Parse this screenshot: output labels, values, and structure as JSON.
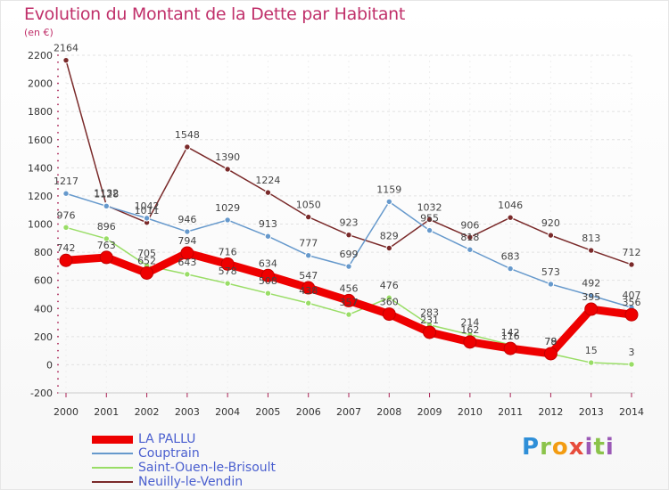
{
  "title": "Evolution du Montant de la Dette par Habitant",
  "unit": "(en €)",
  "logo_text": "Proxiti",
  "chart_data": {
    "type": "line",
    "title": "Evolution du Montant de la Dette par Habitant",
    "ylabel": "(en €)",
    "x": [
      "2000",
      "2001",
      "2002",
      "2003",
      "2004",
      "2005",
      "2006",
      "2007",
      "2008",
      "2009",
      "2010",
      "2011",
      "2012",
      "2013",
      "2014"
    ],
    "yticks": [
      -200,
      0,
      200,
      400,
      600,
      800,
      1000,
      1200,
      1400,
      1600,
      1800,
      2000,
      2200
    ],
    "ylim": [
      -200,
      2200
    ],
    "grid": true,
    "legend_position": "bottom-left",
    "series": [
      {
        "name": "LA PALLU",
        "color": "#ee0000",
        "values": [
          742,
          763,
          652,
          794,
          716,
          634,
          547,
          456,
          360,
          231,
          162,
          116,
          79,
          395,
          356
        ],
        "labels": [
          "742",
          "763",
          "652",
          "794",
          "716",
          "634",
          "547",
          "456",
          "360",
          "231",
          "162",
          "116",
          "79",
          "395",
          "356"
        ]
      },
      {
        "name": "Couptrain",
        "color": "#6699cc",
        "values": [
          1217,
          1128,
          1042,
          946,
          1029,
          913,
          777,
          699,
          1159,
          955,
          818,
          683,
          573,
          492,
          407
        ],
        "labels": [
          "1217",
          "1128",
          "1042",
          "946",
          "1029",
          "913",
          "777",
          "699",
          "1159",
          "955",
          "818",
          "683",
          "573",
          "492",
          "407"
        ]
      },
      {
        "name": "Saint-Ouen-le-Brisoult",
        "color": "#99dd66",
        "values": [
          976,
          896,
          705,
          643,
          578,
          508,
          438,
          357,
          476,
          283,
          214,
          142,
          78,
          15,
          3
        ],
        "labels": [
          "976",
          "896",
          "705",
          "643",
          "578",
          "508",
          "438",
          "357",
          "476",
          "283",
          "214",
          "142",
          "78",
          "15",
          "3"
        ]
      },
      {
        "name": "Neuilly-le-Vendin",
        "color": "#7a2a2a",
        "values": [
          2164,
          1132,
          1011,
          1548,
          1390,
          1224,
          1050,
          923,
          829,
          1032,
          906,
          1046,
          920,
          813,
          712
        ],
        "labels": [
          "2164",
          "1132",
          "1011",
          "1548",
          "1390",
          "1224",
          "1050",
          "923",
          "829",
          "1032",
          "906",
          "1046",
          "920",
          "813",
          "712"
        ]
      }
    ]
  }
}
